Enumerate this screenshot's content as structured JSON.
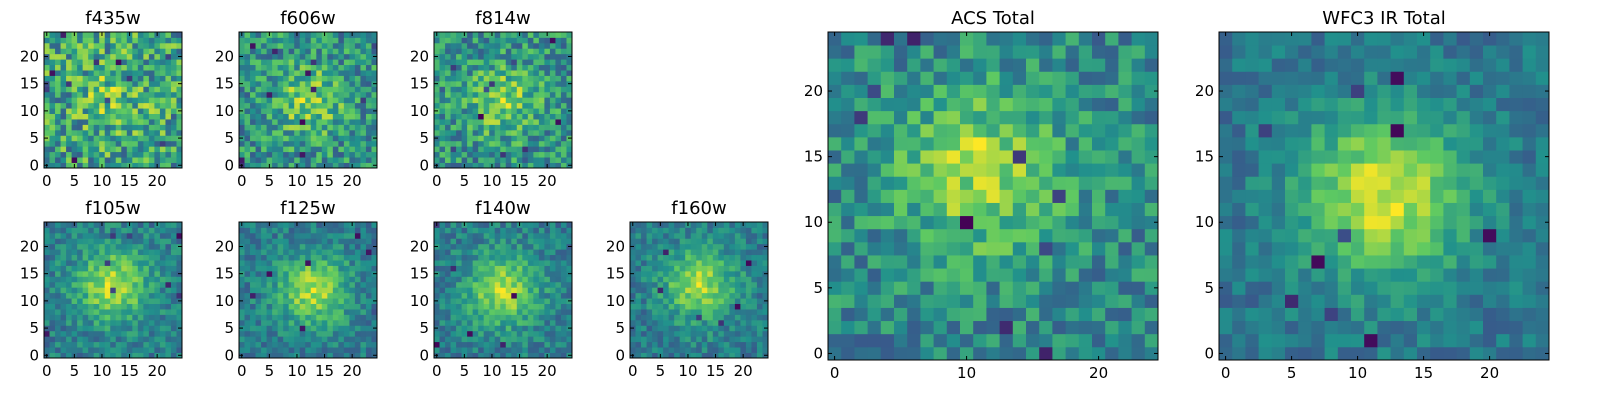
{
  "figure": {
    "colors": {
      "colormap": [
        "#440154",
        "#3b528b",
        "#21918c",
        "#5ec962",
        "#fde725"
      ],
      "axes": "#000000",
      "background": "#ffffff"
    }
  },
  "chart_data": [
    {
      "type": "heatmap",
      "title": "f435w",
      "grid_size": 25,
      "xlim": [
        -0.5,
        24.5
      ],
      "ylim": [
        -0.5,
        24.5
      ],
      "xticks": [
        0,
        5,
        10,
        15,
        20
      ],
      "yticks": [
        0,
        5,
        10,
        15,
        20
      ],
      "peak": [
        12,
        13
      ],
      "concentration": 0.15,
      "noise": 0.55,
      "seed": 11,
      "dark_pixels": 12,
      "colormap": "viridis"
    },
    {
      "type": "heatmap",
      "title": "f606w",
      "grid_size": 25,
      "xlim": [
        -0.5,
        24.5
      ],
      "ylim": [
        -0.5,
        24.5
      ],
      "xticks": [
        0,
        5,
        10,
        15,
        20
      ],
      "yticks": [
        0,
        5,
        10,
        15,
        20
      ],
      "peak": [
        12,
        12
      ],
      "concentration": 0.3,
      "noise": 0.5,
      "seed": 23,
      "dark_pixels": 12,
      "colormap": "viridis"
    },
    {
      "type": "heatmap",
      "title": "f814w",
      "grid_size": 25,
      "xlim": [
        -0.5,
        24.5
      ],
      "ylim": [
        -0.5,
        24.5
      ],
      "xticks": [
        0,
        5,
        10,
        15,
        20
      ],
      "yticks": [
        0,
        5,
        10,
        15,
        20
      ],
      "peak": [
        12,
        12
      ],
      "concentration": 0.3,
      "noise": 0.5,
      "seed": 37,
      "dark_pixels": 10,
      "colormap": "viridis"
    },
    {
      "type": "heatmap",
      "title": "f105w",
      "grid_size": 25,
      "xlim": [
        -0.5,
        24.5
      ],
      "ylim": [
        -0.5,
        24.5
      ],
      "xticks": [
        0,
        5,
        10,
        15,
        20
      ],
      "yticks": [
        0,
        5,
        10,
        15,
        20
      ],
      "peak": [
        12,
        13
      ],
      "concentration": 0.55,
      "noise": 0.35,
      "seed": 41,
      "dark_pixels": 8,
      "colormap": "viridis"
    },
    {
      "type": "heatmap",
      "title": "f125w",
      "grid_size": 25,
      "xlim": [
        -0.5,
        24.5
      ],
      "ylim": [
        -0.5,
        24.5
      ],
      "xticks": [
        0,
        5,
        10,
        15,
        20
      ],
      "yticks": [
        0,
        5,
        10,
        15,
        20
      ],
      "peak": [
        13,
        12
      ],
      "concentration": 0.55,
      "noise": 0.35,
      "seed": 53,
      "dark_pixels": 8,
      "colormap": "viridis"
    },
    {
      "type": "heatmap",
      "title": "f140w",
      "grid_size": 25,
      "xlim": [
        -0.5,
        24.5
      ],
      "ylim": [
        -0.5,
        24.5
      ],
      "xticks": [
        0,
        5,
        10,
        15,
        20
      ],
      "yticks": [
        0,
        5,
        10,
        15,
        20
      ],
      "peak": [
        12,
        12
      ],
      "concentration": 0.55,
      "noise": 0.35,
      "seed": 67,
      "dark_pixels": 6,
      "colormap": "viridis"
    },
    {
      "type": "heatmap",
      "title": "f160w",
      "grid_size": 25,
      "xlim": [
        -0.5,
        24.5
      ],
      "ylim": [
        -0.5,
        24.5
      ],
      "xticks": [
        0,
        5,
        10,
        15,
        20
      ],
      "yticks": [
        0,
        5,
        10,
        15,
        20
      ],
      "peak": [
        12,
        13
      ],
      "concentration": 0.55,
      "noise": 0.35,
      "seed": 79,
      "dark_pixels": 6,
      "colormap": "viridis"
    },
    {
      "type": "heatmap",
      "title": "ACS Total",
      "grid_size": 25,
      "xlim": [
        -0.5,
        24.5
      ],
      "ylim": [
        -0.5,
        24.5
      ],
      "xticks": [
        0,
        10,
        20
      ],
      "yticks": [
        0,
        5,
        10,
        15,
        20
      ],
      "peak": [
        11,
        14
      ],
      "concentration": 0.4,
      "noise": 0.4,
      "seed": 97,
      "dark_pixels": 10,
      "colormap": "viridis"
    },
    {
      "type": "heatmap",
      "title": "WFC3 IR Total",
      "grid_size": 25,
      "xlim": [
        -0.5,
        24.5
      ],
      "ylim": [
        -0.5,
        24.5
      ],
      "xticks": [
        0,
        5,
        10,
        15,
        20
      ],
      "yticks": [
        0,
        5,
        10,
        15,
        20
      ],
      "peak": [
        12,
        12
      ],
      "concentration": 0.7,
      "noise": 0.3,
      "seed": 113,
      "dark_pixels": 10,
      "colormap": "viridis"
    }
  ]
}
